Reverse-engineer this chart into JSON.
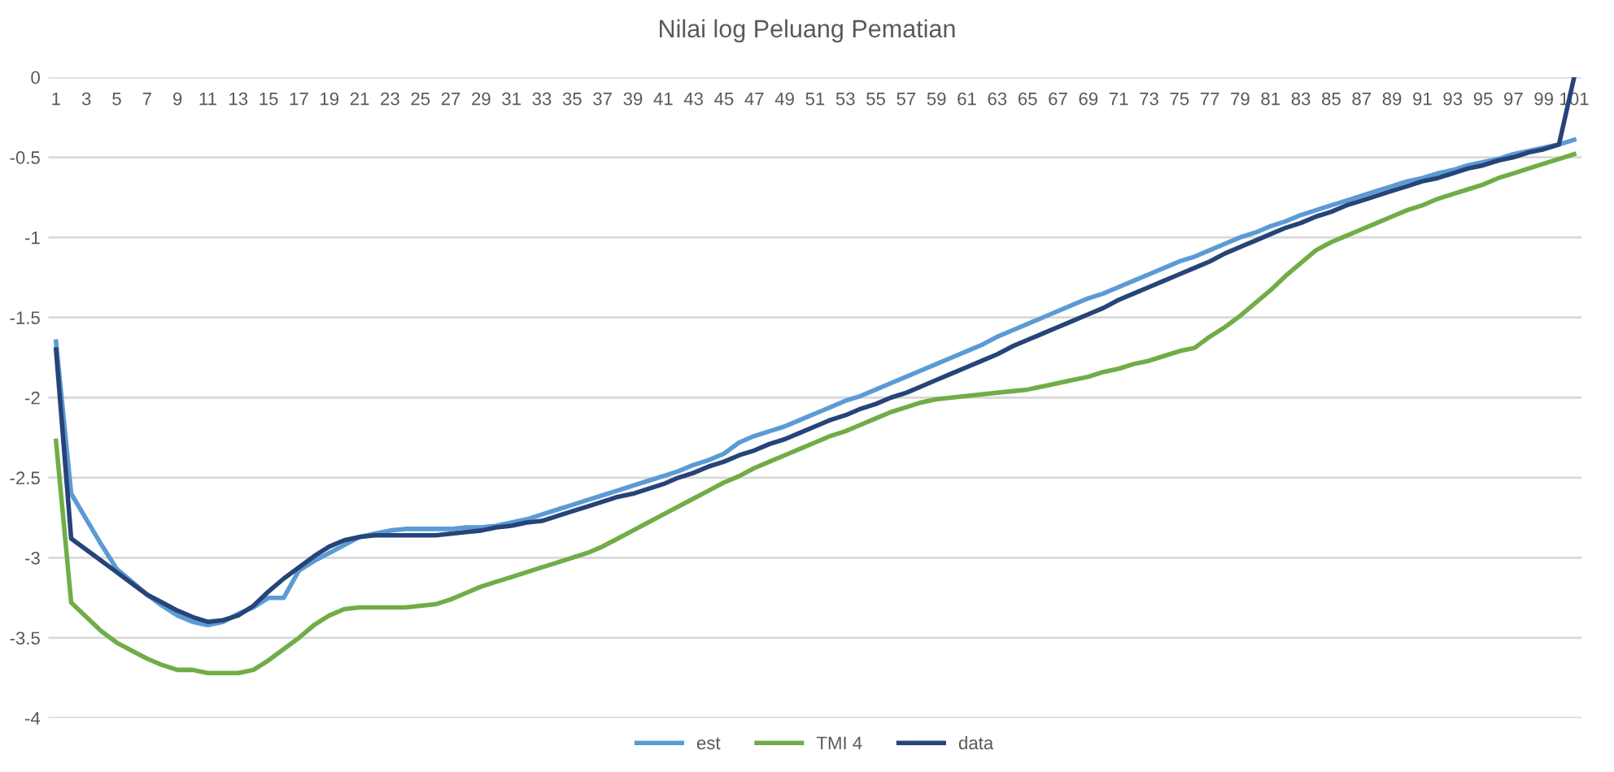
{
  "chart_data": {
    "type": "line",
    "title": "Nilai log Peluang Pematian",
    "categories": [
      "1",
      null,
      "3",
      null,
      "5",
      null,
      "7",
      null,
      "9",
      null,
      "11",
      null,
      "13",
      null,
      "15",
      null,
      "17",
      null,
      "19",
      null,
      "21",
      null,
      "23",
      null,
      "25",
      null,
      "27",
      null,
      "29",
      null,
      "31",
      null,
      "33",
      null,
      "35",
      null,
      "37",
      null,
      "39",
      null,
      "41",
      null,
      "43",
      null,
      "45",
      null,
      "47",
      null,
      "49",
      null,
      "51",
      null,
      "53",
      null,
      "55",
      null,
      "57",
      null,
      "59",
      null,
      "61",
      null,
      "63",
      null,
      "65",
      null,
      "67",
      null,
      "69",
      null,
      "71",
      null,
      "73",
      null,
      "75",
      null,
      "77",
      null,
      "79",
      null,
      "81",
      null,
      "83",
      null,
      "85",
      null,
      "87",
      null,
      "89",
      null,
      "91",
      null,
      "93",
      null,
      "95",
      null,
      "97",
      null,
      "99",
      null,
      "101"
    ],
    "series": [
      {
        "name": "est",
        "color": "#5b9bd5",
        "values": [
          -1.65,
          -2.6,
          -2.76,
          -2.92,
          -3.07,
          -3.15,
          -3.23,
          -3.3,
          -3.36,
          -3.4,
          -3.42,
          -3.4,
          -3.35,
          -3.31,
          -3.25,
          -3.25,
          -3.08,
          -3.02,
          -2.97,
          -2.92,
          -2.87,
          -2.85,
          -2.83,
          -2.82,
          -2.82,
          -2.82,
          -2.82,
          -2.81,
          -2.81,
          -2.8,
          -2.78,
          -2.76,
          -2.73,
          -2.7,
          -2.67,
          -2.64,
          -2.61,
          -2.58,
          -2.55,
          -2.52,
          -2.49,
          -2.46,
          -2.42,
          -2.39,
          -2.35,
          -2.28,
          -2.24,
          -2.21,
          -2.18,
          -2.14,
          -2.1,
          -2.06,
          -2.02,
          -1.99,
          -1.95,
          -1.91,
          -1.87,
          -1.83,
          -1.79,
          -1.75,
          -1.71,
          -1.67,
          -1.62,
          -1.58,
          -1.54,
          -1.5,
          -1.46,
          -1.42,
          -1.38,
          -1.35,
          -1.31,
          -1.27,
          -1.23,
          -1.19,
          -1.15,
          -1.12,
          -1.08,
          -1.04,
          -1.0,
          -0.97,
          -0.93,
          -0.9,
          -0.86,
          -0.83,
          -0.8,
          -0.77,
          -0.74,
          -0.71,
          -0.68,
          -0.65,
          -0.63,
          -0.6,
          -0.58,
          -0.55,
          -0.53,
          -0.51,
          -0.48,
          -0.46,
          -0.44,
          -0.42,
          -0.39
        ]
      },
      {
        "name": "TMI 4",
        "color": "#70ad47",
        "values": [
          -2.27,
          -3.28,
          -3.37,
          -3.46,
          -3.53,
          -3.58,
          -3.63,
          -3.67,
          -3.7,
          -3.7,
          -3.72,
          -3.72,
          -3.72,
          -3.7,
          -3.64,
          -3.57,
          -3.5,
          -3.42,
          -3.36,
          -3.32,
          -3.31,
          -3.31,
          -3.31,
          -3.31,
          -3.3,
          -3.29,
          -3.26,
          -3.22,
          -3.18,
          -3.15,
          -3.12,
          -3.09,
          -3.06,
          -3.03,
          -3.0,
          -2.97,
          -2.93,
          -2.88,
          -2.83,
          -2.78,
          -2.73,
          -2.68,
          -2.63,
          -2.58,
          -2.53,
          -2.49,
          -2.44,
          -2.4,
          -2.36,
          -2.32,
          -2.28,
          -2.24,
          -2.21,
          -2.17,
          -2.13,
          -2.09,
          -2.06,
          -2.03,
          -2.01,
          -2.0,
          -1.99,
          -1.98,
          -1.97,
          -1.96,
          -1.95,
          -1.93,
          -1.91,
          -1.89,
          -1.87,
          -1.84,
          -1.82,
          -1.79,
          -1.77,
          -1.74,
          -1.71,
          -1.69,
          -1.62,
          -1.56,
          -1.49,
          -1.41,
          -1.33,
          -1.24,
          -1.16,
          -1.08,
          -1.03,
          -0.99,
          -0.95,
          -0.91,
          -0.87,
          -0.83,
          -0.8,
          -0.76,
          -0.73,
          -0.7,
          -0.67,
          -0.63,
          -0.6,
          -0.57,
          -0.54,
          -0.51,
          -0.48
        ]
      },
      {
        "name": "data",
        "color": "#264478",
        "values": [
          -1.7,
          -2.88,
          -2.95,
          -3.02,
          -3.09,
          -3.16,
          -3.23,
          -3.28,
          -3.33,
          -3.37,
          -3.4,
          -3.39,
          -3.36,
          -3.3,
          -3.21,
          -3.13,
          -3.06,
          -2.99,
          -2.93,
          -2.89,
          -2.87,
          -2.86,
          -2.86,
          -2.86,
          -2.86,
          -2.86,
          -2.85,
          -2.84,
          -2.83,
          -2.81,
          -2.8,
          -2.78,
          -2.77,
          -2.74,
          -2.71,
          -2.68,
          -2.65,
          -2.62,
          -2.6,
          -2.57,
          -2.54,
          -2.5,
          -2.47,
          -2.43,
          -2.4,
          -2.36,
          -2.33,
          -2.29,
          -2.26,
          -2.22,
          -2.18,
          -2.14,
          -2.11,
          -2.07,
          -2.04,
          -2.0,
          -1.97,
          -1.93,
          -1.89,
          -1.85,
          -1.81,
          -1.77,
          -1.73,
          -1.68,
          -1.64,
          -1.6,
          -1.56,
          -1.52,
          -1.48,
          -1.44,
          -1.39,
          -1.35,
          -1.31,
          -1.27,
          -1.23,
          -1.19,
          -1.15,
          -1.1,
          -1.06,
          -1.02,
          -0.98,
          -0.94,
          -0.91,
          -0.87,
          -0.84,
          -0.8,
          -0.77,
          -0.74,
          -0.71,
          -0.68,
          -0.65,
          -0.63,
          -0.6,
          -0.57,
          -0.55,
          -0.52,
          -0.5,
          -0.47,
          -0.45,
          -0.42,
          0
        ]
      }
    ],
    "ylim": [
      -4,
      0
    ],
    "yticks": [
      -4,
      -3.5,
      -3,
      -2.5,
      -2,
      -1.5,
      -1,
      -0.5,
      0
    ],
    "grid": "y",
    "legend": "bottom",
    "marker": "none",
    "line_style": "solid"
  }
}
